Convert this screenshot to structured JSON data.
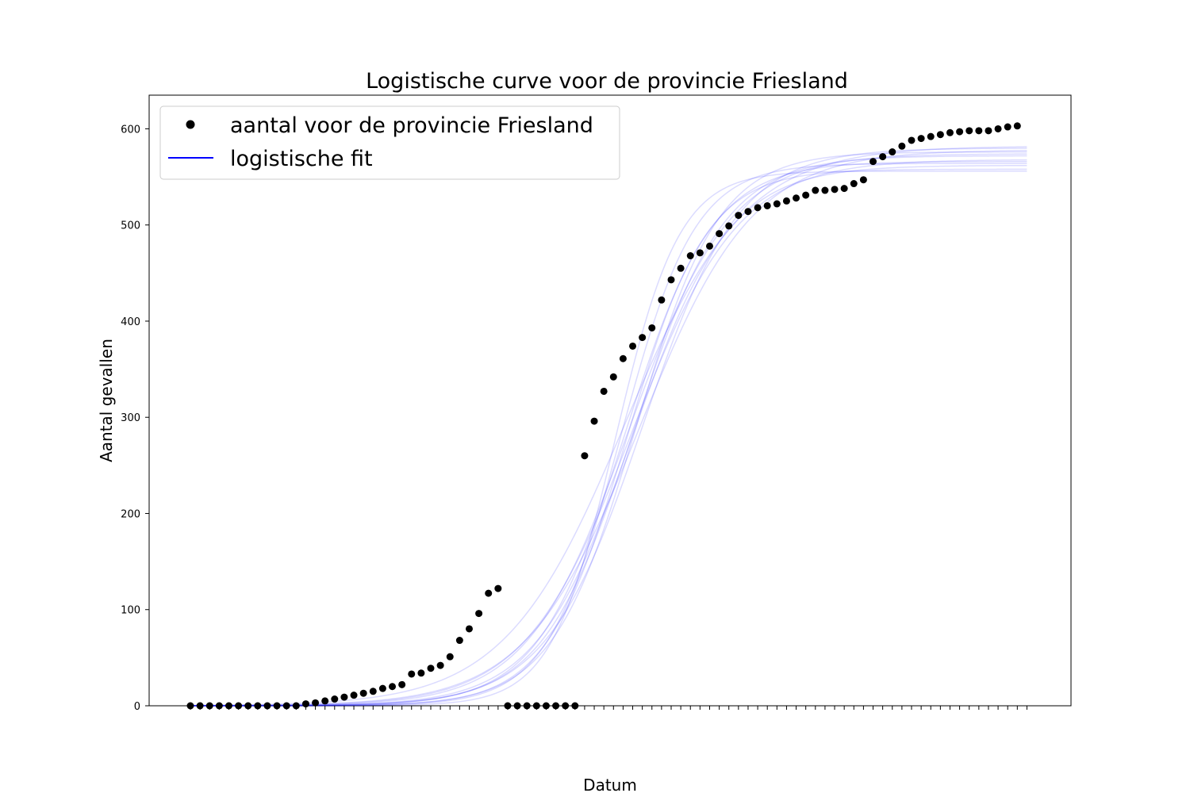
{
  "chart_data": {
    "type": "scatter",
    "title": "Logistische curve voor de provincie Friesland",
    "xlabel": "Datum",
    "ylabel": "Aantal gevallen",
    "ylim": [
      0,
      635
    ],
    "yticks": [
      0,
      100,
      200,
      300,
      400,
      500,
      600
    ],
    "grid": false,
    "legend_position": "top-left",
    "x_tick_count": 88,
    "x_tick_labels_note": "88 overlapping, rotated date labels (unreadable)",
    "series": [
      {
        "name": "aantal voor de provincie Friesland",
        "kind": "points",
        "color": "#000000",
        "values": [
          0,
          0,
          0,
          0,
          0,
          0,
          0,
          0,
          0,
          0,
          0,
          0,
          2,
          3,
          5,
          7,
          9,
          11,
          13,
          15,
          18,
          20,
          22,
          33,
          34,
          39,
          42,
          51,
          68,
          80,
          96,
          117,
          122,
          0,
          0,
          0,
          0,
          0,
          0,
          0,
          0,
          260,
          296,
          327,
          342,
          361,
          374,
          383,
          393,
          422,
          443,
          455,
          468,
          471,
          478,
          491,
          499,
          510,
          514,
          518,
          520,
          522,
          525,
          528,
          531,
          536,
          536,
          537,
          538,
          543,
          547,
          566,
          571,
          576,
          582,
          588,
          590,
          592,
          594,
          596,
          597,
          598,
          598,
          598,
          600,
          602,
          603
        ]
      },
      {
        "name": "logistische fit",
        "kind": "lines",
        "color": "#0000ff",
        "curves": [
          {
            "L": 556,
            "k": 0.3,
            "x0": 44.2
          },
          {
            "L": 558,
            "k": 0.24,
            "x0": 45.4
          },
          {
            "L": 562,
            "k": 0.2,
            "x0": 46.0
          },
          {
            "L": 564,
            "k": 0.26,
            "x0": 44.8
          },
          {
            "L": 566,
            "k": 0.22,
            "x0": 45.2
          },
          {
            "L": 568,
            "k": 0.18,
            "x0": 45.9
          },
          {
            "L": 572,
            "k": 0.21,
            "x0": 46.1
          },
          {
            "L": 574,
            "k": 0.19,
            "x0": 45.6
          },
          {
            "L": 576,
            "k": 0.23,
            "x0": 46.3
          },
          {
            "L": 578,
            "k": 0.17,
            "x0": 46.7
          },
          {
            "L": 580,
            "k": 0.2,
            "x0": 47.0
          },
          {
            "L": 582,
            "k": 0.16,
            "x0": 45.1
          }
        ]
      }
    ]
  }
}
